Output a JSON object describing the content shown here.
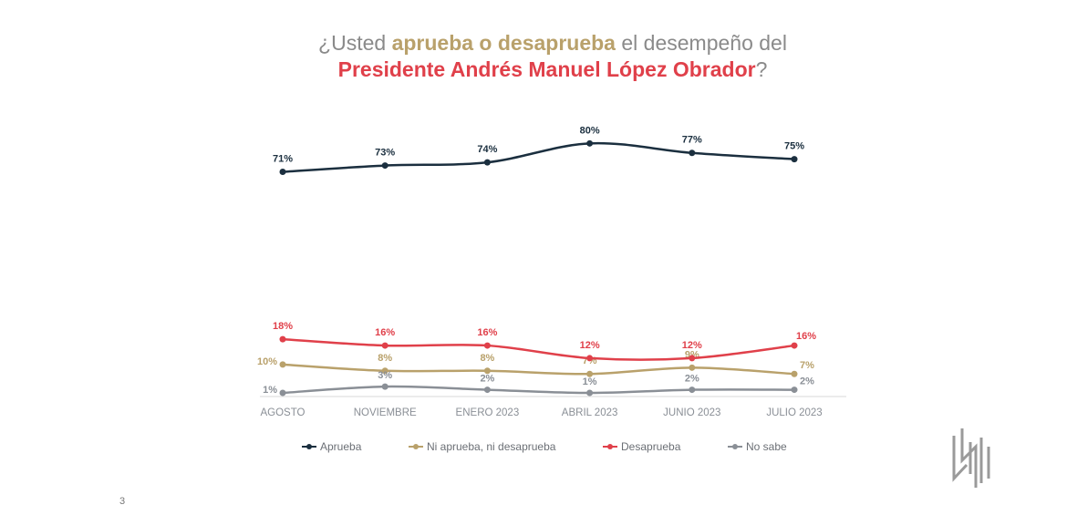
{
  "title_lines": [
    [
      {
        "text": "¿Usted ",
        "weight": "normal",
        "color": "#8a8a8a"
      },
      {
        "text": "aprueba o desaprueba",
        "weight": "bold",
        "color": "#b9a16b"
      },
      {
        "text": " el desempeño del",
        "weight": "normal",
        "color": "#8a8a8a"
      }
    ],
    [
      {
        "text": "Presidente Andrés Manuel López Obrador",
        "weight": "bold",
        "color": "#e0404a"
      },
      {
        "text": "?",
        "weight": "normal",
        "color": "#8a8a8a"
      }
    ]
  ],
  "chart_data": {
    "type": "line",
    "categories": [
      "AGOSTO",
      "NOVIEMBRE",
      "ENERO 2023",
      "ABRIL 2023",
      "JUNIO 2023",
      "JULIO 2023"
    ],
    "ylim": [
      0,
      85
    ],
    "series": [
      {
        "name": "Aprueba",
        "color": "#1b2f3f",
        "values": [
          71,
          73,
          74,
          80,
          77,
          75
        ],
        "value_labels": [
          "71%",
          "73%",
          "74%",
          "80%",
          "77%",
          "75%"
        ]
      },
      {
        "name": "Ni aprueba, ni desaprueba",
        "color": "#b9a16b",
        "values": [
          10,
          8,
          8,
          7,
          9,
          7
        ],
        "value_labels": [
          "10%",
          "8%",
          "8%",
          "7%",
          "9%",
          "7%"
        ]
      },
      {
        "name": "Desaprueba",
        "color": "#e0404a",
        "values": [
          18,
          16,
          16,
          12,
          12,
          16
        ],
        "value_labels": [
          "18%",
          "16%",
          "16%",
          "12%",
          "12%",
          "16%"
        ]
      },
      {
        "name": "No sabe",
        "color": "#8a8f96",
        "values": [
          1,
          3,
          2,
          1,
          2,
          2
        ],
        "value_labels": [
          "1%",
          "3%",
          "2%",
          "1%",
          "2%",
          "2%"
        ]
      }
    ]
  },
  "page_number": "3"
}
